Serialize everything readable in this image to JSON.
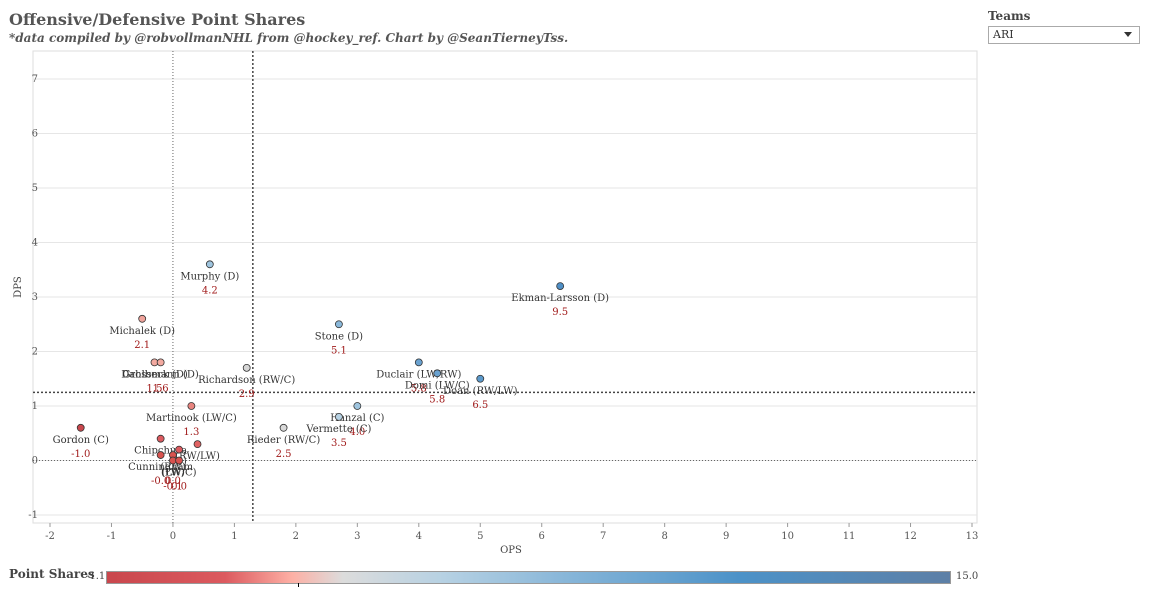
{
  "title": "Offensive/Defensive Point Shares",
  "subtitle": "*data compiled by @robvollmanNHL from @hockey_ref. Chart by @SeanTierneyTss.",
  "filter": {
    "label": "Teams",
    "selected": "ARI"
  },
  "legend": {
    "title": "Point Shares",
    "min": "-1.1",
    "max": "15.0"
  },
  "chart_data": {
    "type": "scatter",
    "xlabel": "OPS",
    "ylabel": "DPS",
    "xlim": [
      -2,
      13
    ],
    "ylim": [
      -1,
      7.4
    ],
    "xticks": [
      -2,
      -1,
      0,
      1,
      2,
      3,
      4,
      5,
      6,
      7,
      8,
      9,
      10,
      11,
      12,
      13
    ],
    "yticks": [
      -1,
      0,
      1,
      2,
      3,
      4,
      5,
      6,
      7
    ],
    "grid": true,
    "zero_lines": {
      "x": 0,
      "y": 0
    },
    "average_lines": {
      "x": 1.3,
      "y": 1.25
    },
    "points": [
      {
        "label": "Ekman-Larsson (D)",
        "value": "9.5",
        "x": 6.3,
        "y": 3.2,
        "color": "#4f8fc6"
      },
      {
        "label": "Murphy (D)",
        "value": "4.2",
        "x": 0.6,
        "y": 3.6,
        "color": "#9ec4de"
      },
      {
        "label": "Michalek (D)",
        "value": "2.1",
        "x": -0.5,
        "y": 2.6,
        "color": "#f0a39b"
      },
      {
        "label": "Stone (D)",
        "value": "5.1",
        "x": 2.7,
        "y": 2.5,
        "color": "#8ab8da"
      },
      {
        "label": "Duclair (LW/RW)",
        "value": "5.8",
        "x": 4.0,
        "y": 1.8,
        "color": "#6aa2d0"
      },
      {
        "label": "Domi (LW/C)",
        "value": "5.8",
        "x": 4.3,
        "y": 1.6,
        "color": "#6aa2d0"
      },
      {
        "label": "Doan (RW/LW)",
        "value": "6.5",
        "x": 5.0,
        "y": 1.5,
        "color": "#5b99cb"
      },
      {
        "label": "Richardson (RW/C)",
        "value": "2.9",
        "x": 1.2,
        "y": 1.7,
        "color": "#d6d6d6"
      },
      {
        "label": "Dahlbeck (D)",
        "value": "1.5",
        "x": -0.3,
        "y": 1.8,
        "color": "#f3aaa0"
      },
      {
        "label": "Grossmann (D)",
        "value": "1.6",
        "x": -0.2,
        "y": 1.8,
        "color": "#f3aaa0"
      },
      {
        "label": "Martinook (LW/C)",
        "value": "1.3",
        "x": 0.3,
        "y": 1.0,
        "color": "#e8847f"
      },
      {
        "label": "Hanzal (C)",
        "value": "4.0",
        "x": 3.0,
        "y": 1.0,
        "color": "#9ec4de"
      },
      {
        "label": "Vermette (C)",
        "value": "3.5",
        "x": 2.7,
        "y": 0.8,
        "color": "#b6d1e3"
      },
      {
        "label": "Rieder (RW/C)",
        "value": "2.5",
        "x": 1.8,
        "y": 0.6,
        "color": "#d9d9d9"
      },
      {
        "label": "Gordon (C)",
        "value": "-1.0",
        "x": -1.5,
        "y": 0.6,
        "color": "#c9474d"
      },
      {
        "label": "Chipchura",
        "value": "",
        "x": -0.2,
        "y": 0.4,
        "color": "#dc5a5f"
      },
      {
        "label": "(RW/LW)",
        "value": "",
        "x": 0.4,
        "y": 0.3,
        "color": "#e06262"
      },
      {
        "label": "(C)",
        "value": "",
        "x": 0.1,
        "y": 0.2,
        "color": "#dc5a5f"
      },
      {
        "label": "Cunningham",
        "value": "-0.0",
        "x": -0.2,
        "y": 0.1,
        "color": "#d9534f"
      },
      {
        "label": "(RW)",
        "value": "0.0",
        "x": 0.0,
        "y": 0.1,
        "color": "#d9534f"
      },
      {
        "label": "(LW)",
        "value": "-0.1",
        "x": 0.0,
        "y": 0.0,
        "color": "#d9534f"
      },
      {
        "label": "(LW/C)",
        "value": "0.0",
        "x": 0.1,
        "y": 0.0,
        "color": "#d9534f"
      }
    ]
  }
}
